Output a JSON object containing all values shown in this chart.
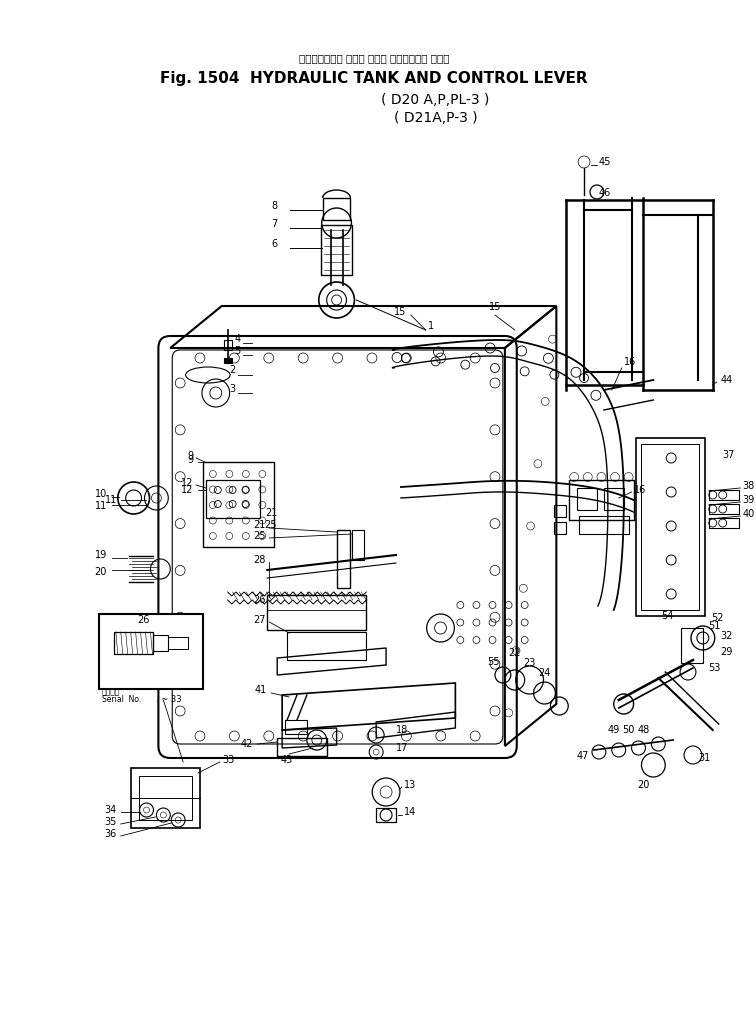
{
  "title_japanese": "ハイドロリック タンク および コントロール レバー",
  "title_main": "Fig. 1504  HYDRAULIC TANK AND CONTROL LEVER",
  "subtitle1": "( D20 A,P,PL-3 )",
  "subtitle2": "( D21A,P-3 )",
  "bg_color": "#ffffff",
  "lc": "#000000",
  "fig_w": 7.56,
  "fig_h": 10.15,
  "dpi": 100,
  "serial_text": "Serial  No.",
  "serial_num": ". ~ 33",
  "applied_text": "適用番号"
}
